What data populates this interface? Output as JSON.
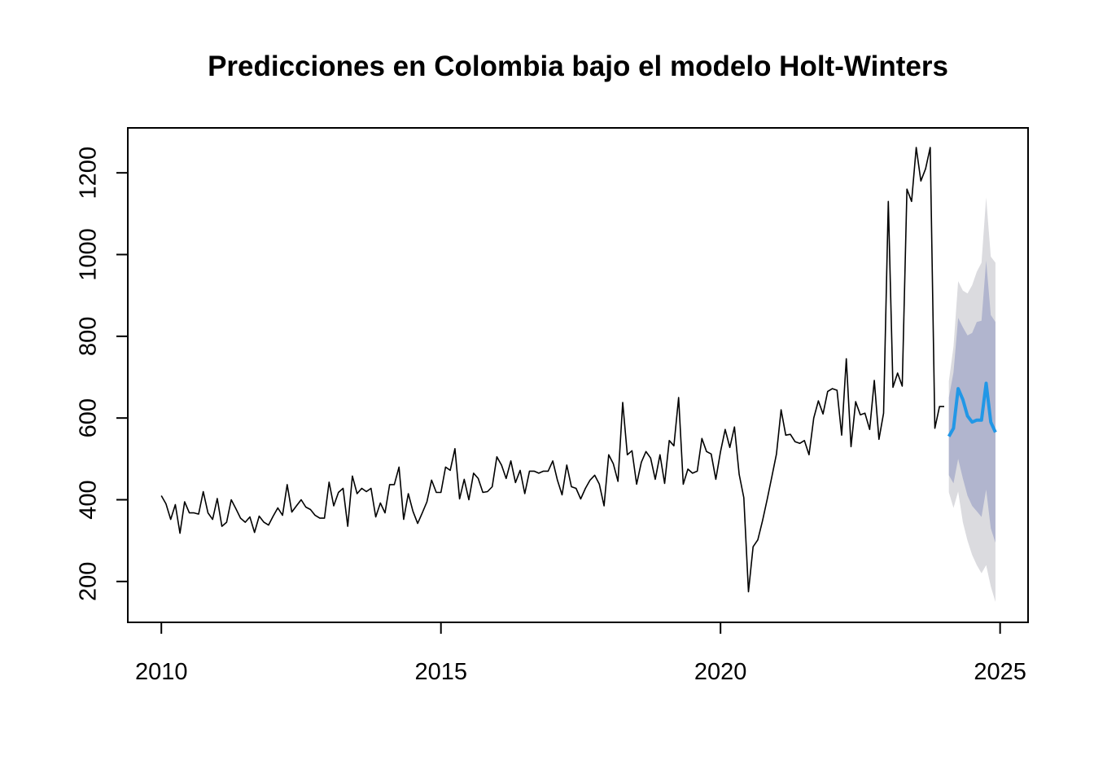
{
  "chart_data": {
    "type": "line",
    "title": "Predicciones en Colombia bajo el modelo Holt-Winters",
    "xlabel": "",
    "ylabel": "",
    "xlim": [
      2009.4,
      2025.5
    ],
    "ylim": [
      100,
      1310
    ],
    "x_ticks": [
      2010,
      2015,
      2020,
      2025
    ],
    "y_ticks": [
      200,
      400,
      600,
      800,
      1000,
      1200
    ],
    "grid": false,
    "legend": "none",
    "colors": {
      "observed": "#000000",
      "forecast": "#2297e6",
      "band80": "#b1b5ce",
      "band95": "#dbdbdf"
    },
    "observed": {
      "start": [
        2010,
        1
      ],
      "frequency": 12,
      "values": [
        410,
        390,
        352,
        388,
        318,
        395,
        368,
        368,
        365,
        420,
        368,
        352,
        403,
        335,
        345,
        400,
        378,
        355,
        345,
        358,
        320,
        360,
        345,
        338,
        360,
        380,
        362,
        437,
        370,
        385,
        400,
        382,
        376,
        362,
        355,
        355,
        443,
        385,
        418,
        428,
        335,
        458,
        415,
        428,
        420,
        428,
        358,
        392,
        368,
        437,
        437,
        480,
        352,
        415,
        372,
        342,
        368,
        395,
        448,
        418,
        418,
        480,
        472,
        525,
        402,
        450,
        400,
        465,
        452,
        418,
        420,
        432,
        505,
        485,
        452,
        495,
        442,
        472,
        415,
        470,
        470,
        465,
        470,
        470,
        495,
        448,
        412,
        485,
        432,
        428,
        402,
        428,
        448,
        460,
        438,
        385,
        510,
        488,
        445,
        638,
        510,
        520,
        438,
        492,
        518,
        502,
        450,
        510,
        440,
        545,
        532,
        650,
        438,
        475,
        465,
        470,
        550,
        518,
        512,
        450,
        518,
        572,
        528,
        578,
        462,
        405,
        175,
        285,
        302,
        348,
        400,
        455,
        512,
        620,
        558,
        560,
        542,
        538,
        545,
        510,
        600,
        642,
        610,
        665,
        672,
        668,
        558,
        745,
        530,
        640,
        608,
        612,
        572,
        692,
        548,
        612,
        1130,
        675,
        710,
        678,
        1160,
        1130,
        1262,
        1180,
        1210,
        1262,
        575,
        628,
        628
      ]
    },
    "forecast": {
      "start": [
        2024,
        2
      ],
      "frequency": 12,
      "mean": [
        555,
        575,
        672,
        645,
        605,
        590,
        595,
        595,
        685,
        590,
        565
      ],
      "lo80": [
        460,
        440,
        500,
        452,
        410,
        385,
        372,
        358,
        425,
        330,
        295
      ],
      "hi80": [
        650,
        712,
        845,
        822,
        802,
        808,
        835,
        838,
        985,
        852,
        835
      ],
      "lo95": [
        418,
        380,
        420,
        345,
        300,
        265,
        240,
        220,
        240,
        188,
        150
      ],
      "hi95": [
        690,
        775,
        935,
        912,
        905,
        925,
        958,
        980,
        1140,
        995,
        980
      ]
    }
  }
}
